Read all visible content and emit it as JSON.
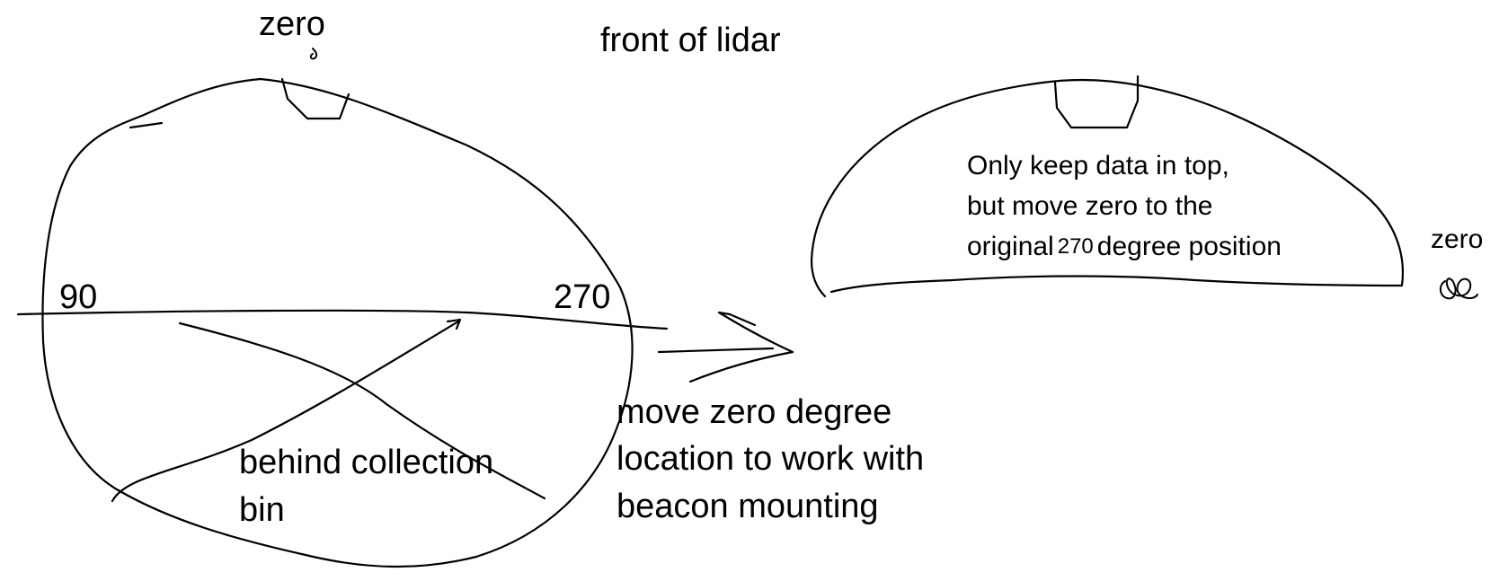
{
  "left_sketch": {
    "zero_label": "zero",
    "front_label": "front of lidar",
    "left_angle_label": "90",
    "right_angle_label": "270",
    "behind_line1": "behind collection",
    "behind_line2": "bin"
  },
  "middle_note": {
    "line1": "move zero degree",
    "line2": "location to work with",
    "line3": "beacon mounting"
  },
  "right_sketch": {
    "note_line1": "Only keep data in top,",
    "note_line2": "but move zero to the",
    "note_line3_prefix": "original",
    "note_line3_number": "270",
    "note_line3_suffix": "degree position",
    "zero_label": "zero"
  },
  "stroke_color": "#000000"
}
